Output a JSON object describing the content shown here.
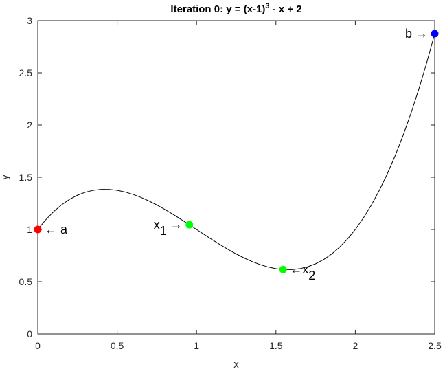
{
  "chart_data": {
    "type": "line",
    "title": {
      "text": "Iteration 0: y = (x-1)",
      "sup": "3",
      "after": " - x + 2"
    },
    "xlabel": "x",
    "ylabel": "y",
    "xlim": [
      0,
      2.5
    ],
    "ylim": [
      0,
      3
    ],
    "xticks": [
      0,
      0.5,
      1,
      1.5,
      2,
      2.5
    ],
    "yticks": [
      0,
      0.5,
      1,
      1.5,
      2,
      2.5,
      3
    ],
    "series": [
      {
        "color": "#000000",
        "x": [
          0,
          0.05,
          0.1,
          0.15,
          0.2,
          0.25,
          0.3,
          0.35,
          0.4,
          0.45,
          0.5,
          0.55,
          0.6,
          0.65,
          0.7,
          0.75,
          0.8,
          0.85,
          0.9,
          0.95,
          1,
          1.05,
          1.1,
          1.15,
          1.2,
          1.25,
          1.3,
          1.35,
          1.4,
          1.45,
          1.5,
          1.55,
          1.6,
          1.65,
          1.7,
          1.75,
          1.8,
          1.85,
          1.9,
          1.95,
          2,
          2.05,
          2.1,
          2.15,
          2.2,
          2.25,
          2.3,
          2.35,
          2.4,
          2.45,
          2.5
        ],
        "values": [
          1,
          1.092625,
          1.171,
          1.235875,
          1.288,
          1.328125,
          1.357,
          1.375375,
          1.384,
          1.383625,
          1.375,
          1.358875,
          1.336,
          1.307125,
          1.273,
          1.234375,
          1.192,
          1.146625,
          1.099,
          1.049875,
          1,
          0.950125,
          0.901,
          0.853375,
          0.808,
          0.765625,
          0.727,
          0.692875,
          0.664,
          0.641125,
          0.625,
          0.616375,
          0.616,
          0.624625,
          0.643,
          0.671875,
          0.712,
          0.764125,
          0.829,
          0.907375,
          1,
          1.107625,
          1.231,
          1.370875,
          1.528,
          1.703125,
          1.897,
          2.110375,
          2.344,
          2.598625,
          2.875
        ]
      }
    ],
    "points": [
      {
        "x": 0,
        "y": 1,
        "color": "#ff0000",
        "side": "right",
        "label": {
          "text": "← a"
        }
      },
      {
        "x": 2.5,
        "y": 2.875,
        "color": "#0000ff",
        "side": "left",
        "label": {
          "text": "b →"
        }
      },
      {
        "x": 0.955,
        "y": 1.045,
        "color": "#00ff00",
        "side": "left",
        "label": {
          "text": "x",
          "sub": "1",
          "after": " →"
        }
      },
      {
        "x": 1.545,
        "y": 0.617,
        "color": "#00ff00",
        "side": "right",
        "label": {
          "text": "←x",
          "sub": "2"
        }
      }
    ]
  }
}
